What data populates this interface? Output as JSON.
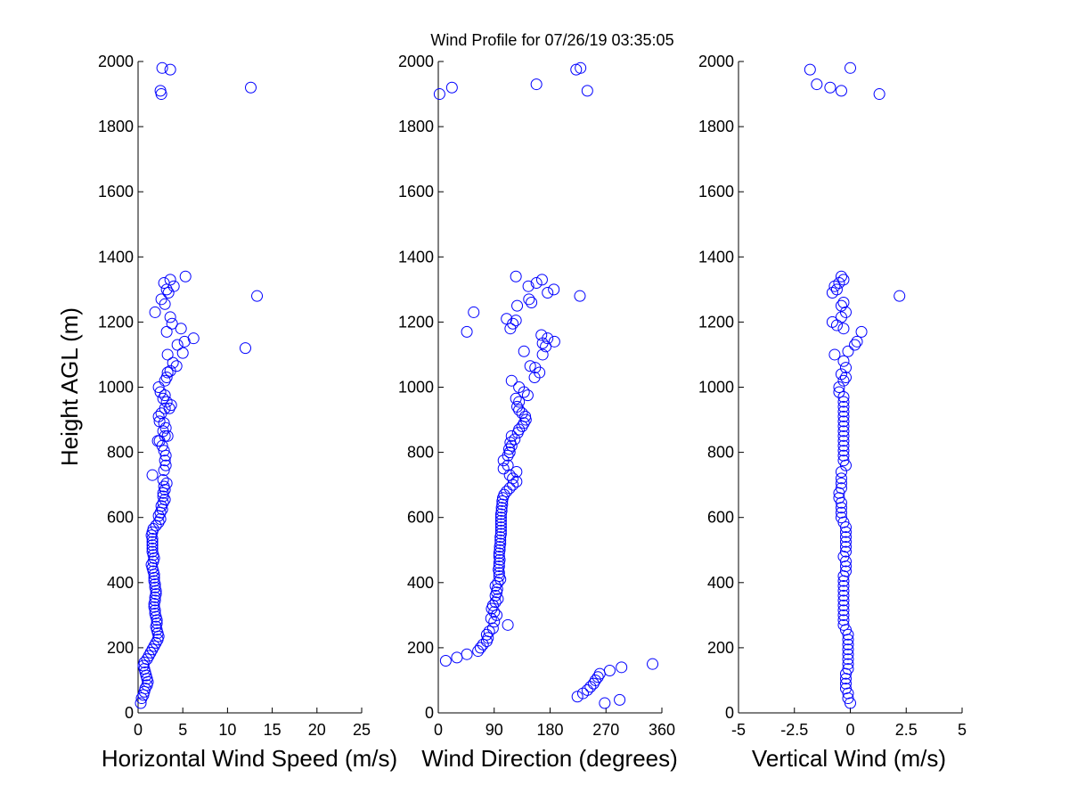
{
  "figure": {
    "title": "Wind Profile for  07/26/19 03:35:05",
    "ylabel": "Height AGL (m)",
    "marker_color": "#0000ff"
  },
  "chart_data": [
    {
      "type": "scatter",
      "id": "speed",
      "xlabel": "Horizontal Wind Speed (m/s)",
      "ylabel": "Height AGL (m)",
      "xlim": [
        0,
        25
      ],
      "ylim": [
        0,
        2000
      ],
      "xticks": [
        0,
        5,
        10,
        15,
        20,
        25
      ],
      "xtick_labels": [
        "0",
        "5",
        "10",
        "15",
        "20",
        "25"
      ],
      "yticks": [
        0,
        200,
        400,
        600,
        800,
        1000,
        1200,
        1400,
        1600,
        1800,
        2000
      ],
      "grid": false,
      "points": [
        [
          0.3,
          30
        ],
        [
          0.4,
          45
        ],
        [
          0.6,
          55
        ],
        [
          0.7,
          65
        ],
        [
          0.8,
          75
        ],
        [
          1.0,
          85
        ],
        [
          1.1,
          95
        ],
        [
          1.0,
          105
        ],
        [
          0.9,
          115
        ],
        [
          0.8,
          125
        ],
        [
          0.7,
          135
        ],
        [
          0.6,
          145
        ],
        [
          0.7,
          155
        ],
        [
          1.0,
          165
        ],
        [
          1.2,
          175
        ],
        [
          1.4,
          185
        ],
        [
          1.6,
          195
        ],
        [
          1.8,
          205
        ],
        [
          2.0,
          215
        ],
        [
          2.2,
          225
        ],
        [
          2.3,
          235
        ],
        [
          2.2,
          245
        ],
        [
          2.1,
          255
        ],
        [
          2.0,
          265
        ],
        [
          2.1,
          275
        ],
        [
          2.1,
          285
        ],
        [
          2.0,
          295
        ],
        [
          1.9,
          305
        ],
        [
          1.9,
          315
        ],
        [
          1.8,
          325
        ],
        [
          1.8,
          335
        ],
        [
          1.9,
          345
        ],
        [
          1.9,
          355
        ],
        [
          2.0,
          365
        ],
        [
          2.0,
          375
        ],
        [
          1.9,
          385
        ],
        [
          1.9,
          395
        ],
        [
          1.8,
          405
        ],
        [
          1.8,
          415
        ],
        [
          1.8,
          425
        ],
        [
          1.7,
          435
        ],
        [
          1.6,
          445
        ],
        [
          1.5,
          455
        ],
        [
          1.7,
          465
        ],
        [
          1.8,
          475
        ],
        [
          1.7,
          485
        ],
        [
          1.6,
          495
        ],
        [
          1.6,
          505
        ],
        [
          1.6,
          515
        ],
        [
          1.6,
          525
        ],
        [
          1.6,
          535
        ],
        [
          1.5,
          545
        ],
        [
          1.6,
          555
        ],
        [
          1.7,
          565
        ],
        [
          2.0,
          575
        ],
        [
          2.3,
          585
        ],
        [
          2.5,
          595
        ],
        [
          2.3,
          605
        ],
        [
          2.5,
          615
        ],
        [
          2.7,
          625
        ],
        [
          2.6,
          635
        ],
        [
          2.8,
          645
        ],
        [
          3.0,
          655
        ],
        [
          2.8,
          665
        ],
        [
          2.8,
          675
        ],
        [
          3.0,
          685
        ],
        [
          2.9,
          695
        ],
        [
          3.2,
          705
        ],
        [
          2.8,
          715
        ],
        [
          1.6,
          730
        ],
        [
          2.9,
          745
        ],
        [
          3.1,
          760
        ],
        [
          3.0,
          775
        ],
        [
          3.1,
          790
        ],
        [
          2.9,
          805
        ],
        [
          2.7,
          820
        ],
        [
          2.4,
          835
        ],
        [
          2.2,
          835
        ],
        [
          3.0,
          850
        ],
        [
          3.3,
          850
        ],
        [
          2.8,
          865
        ],
        [
          3.1,
          875
        ],
        [
          2.9,
          890
        ],
        [
          2.4,
          895
        ],
        [
          2.3,
          910
        ],
        [
          2.6,
          920
        ],
        [
          3.0,
          935
        ],
        [
          3.5,
          935
        ],
        [
          3.7,
          945
        ],
        [
          3.2,
          955
        ],
        [
          2.8,
          965
        ],
        [
          3.0,
          975
        ],
        [
          2.5,
          985
        ],
        [
          2.3,
          1000
        ],
        [
          3.0,
          1020
        ],
        [
          3.2,
          1030
        ],
        [
          3.3,
          1045
        ],
        [
          3.6,
          1050
        ],
        [
          4.3,
          1065
        ],
        [
          3.9,
          1075
        ],
        [
          3.3,
          1100
        ],
        [
          5.0,
          1105
        ],
        [
          12.0,
          1120
        ],
        [
          4.4,
          1130
        ],
        [
          5.2,
          1140
        ],
        [
          6.2,
          1150
        ],
        [
          3.2,
          1170
        ],
        [
          4.8,
          1180
        ],
        [
          3.8,
          1195
        ],
        [
          3.6,
          1215
        ],
        [
          1.9,
          1230
        ],
        [
          3.0,
          1255
        ],
        [
          2.6,
          1270
        ],
        [
          13.3,
          1280
        ],
        [
          3.4,
          1290
        ],
        [
          3.2,
          1300
        ],
        [
          4.0,
          1310
        ],
        [
          2.9,
          1320
        ],
        [
          3.6,
          1330
        ],
        [
          5.3,
          1340
        ],
        [
          3.6,
          1975
        ],
        [
          2.7,
          1980
        ],
        [
          2.5,
          1910
        ],
        [
          2.6,
          1900
        ],
        [
          12.6,
          1920
        ]
      ]
    },
    {
      "type": "scatter",
      "id": "direction",
      "xlabel": "Wind Direction (degrees)",
      "ylabel": "",
      "xlim": [
        0,
        360
      ],
      "ylim": [
        0,
        2000
      ],
      "xticks": [
        0,
        90,
        180,
        270,
        360
      ],
      "xtick_labels": [
        "0",
        "90",
        "180",
        "270",
        "360"
      ],
      "yticks": [
        0,
        200,
        400,
        600,
        800,
        1000,
        1200,
        1400,
        1600,
        1800,
        2000
      ],
      "grid": false,
      "points": [
        [
          268,
          30
        ],
        [
          292,
          40
        ],
        [
          224,
          50
        ],
        [
          233,
          60
        ],
        [
          240,
          70
        ],
        [
          245,
          80
        ],
        [
          250,
          90
        ],
        [
          253,
          100
        ],
        [
          257,
          110
        ],
        [
          260,
          120
        ],
        [
          276,
          130
        ],
        [
          295,
          140
        ],
        [
          345,
          150
        ],
        [
          12,
          160
        ],
        [
          30,
          170
        ],
        [
          46,
          180
        ],
        [
          64,
          190
        ],
        [
          68,
          200
        ],
        [
          72,
          210
        ],
        [
          78,
          220
        ],
        [
          80,
          230
        ],
        [
          78,
          240
        ],
        [
          82,
          250
        ],
        [
          88,
          260
        ],
        [
          112,
          270
        ],
        [
          90,
          280
        ],
        [
          85,
          290
        ],
        [
          94,
          300
        ],
        [
          90,
          310
        ],
        [
          86,
          320
        ],
        [
          88,
          330
        ],
        [
          92,
          340
        ],
        [
          96,
          350
        ],
        [
          92,
          360
        ],
        [
          94,
          370
        ],
        [
          95,
          380
        ],
        [
          92,
          390
        ],
        [
          96,
          400
        ],
        [
          100,
          410
        ],
        [
          98,
          420
        ],
        [
          98,
          430
        ],
        [
          97,
          440
        ],
        [
          98,
          450
        ],
        [
          98,
          460
        ],
        [
          99,
          470
        ],
        [
          98,
          480
        ],
        [
          98,
          490
        ],
        [
          99,
          500
        ],
        [
          99,
          510
        ],
        [
          100,
          520
        ],
        [
          100,
          530
        ],
        [
          100,
          540
        ],
        [
          101,
          550
        ],
        [
          101,
          560
        ],
        [
          101,
          570
        ],
        [
          101,
          580
        ],
        [
          101,
          590
        ],
        [
          101,
          600
        ],
        [
          101,
          610
        ],
        [
          102,
          620
        ],
        [
          102,
          630
        ],
        [
          103,
          640
        ],
        [
          103,
          650
        ],
        [
          104,
          660
        ],
        [
          106,
          670
        ],
        [
          110,
          680
        ],
        [
          115,
          690
        ],
        [
          120,
          700
        ],
        [
          126,
          710
        ],
        [
          120,
          720
        ],
        [
          115,
          730
        ],
        [
          126,
          740
        ],
        [
          105,
          750
        ],
        [
          112,
          760
        ],
        [
          105,
          775
        ],
        [
          112,
          790
        ],
        [
          115,
          800
        ],
        [
          114,
          810
        ],
        [
          118,
          820
        ],
        [
          116,
          830
        ],
        [
          123,
          840
        ],
        [
          118,
          850
        ],
        [
          128,
          860
        ],
        [
          130,
          870
        ],
        [
          135,
          880
        ],
        [
          138,
          890
        ],
        [
          141,
          900
        ],
        [
          140,
          910
        ],
        [
          135,
          920
        ],
        [
          130,
          930
        ],
        [
          127,
          940
        ],
        [
          130,
          955
        ],
        [
          125,
          965
        ],
        [
          144,
          975
        ],
        [
          138,
          985
        ],
        [
          130,
          1000
        ],
        [
          118,
          1020
        ],
        [
          155,
          1030
        ],
        [
          163,
          1045
        ],
        [
          156,
          1060
        ],
        [
          148,
          1065
        ],
        [
          168,
          1100
        ],
        [
          138,
          1110
        ],
        [
          173,
          1125
        ],
        [
          168,
          1135
        ],
        [
          187,
          1140
        ],
        [
          176,
          1150
        ],
        [
          166,
          1160
        ],
        [
          46,
          1170
        ],
        [
          116,
          1180
        ],
        [
          120,
          1195
        ],
        [
          125,
          1205
        ],
        [
          110,
          1210
        ],
        [
          57,
          1230
        ],
        [
          127,
          1250
        ],
        [
          150,
          1260
        ],
        [
          146,
          1270
        ],
        [
          228,
          1280
        ],
        [
          176,
          1290
        ],
        [
          186,
          1300
        ],
        [
          145,
          1310
        ],
        [
          158,
          1320
        ],
        [
          167,
          1330
        ],
        [
          125,
          1340
        ],
        [
          2,
          1900
        ],
        [
          22,
          1920
        ],
        [
          158,
          1930
        ],
        [
          240,
          1910
        ],
        [
          222,
          1975
        ],
        [
          229,
          1980
        ]
      ]
    },
    {
      "type": "scatter",
      "id": "vertical",
      "xlabel": "Vertical Wind (m/s)",
      "ylabel": "",
      "xlim": [
        -5,
        5
      ],
      "ylim": [
        0,
        2000
      ],
      "xticks": [
        -5,
        -2.5,
        0,
        2.5,
        5
      ],
      "xtick_labels": [
        "-5",
        "-2.5",
        "0",
        "2.5",
        "5"
      ],
      "yticks": [
        0,
        200,
        400,
        600,
        800,
        1000,
        1200,
        1400,
        1600,
        1800,
        2000
      ],
      "grid": false,
      "points": [
        [
          0.0,
          30
        ],
        [
          -0.1,
          45
        ],
        [
          -0.1,
          60
        ],
        [
          -0.2,
          75
        ],
        [
          -0.2,
          90
        ],
        [
          -0.2,
          105
        ],
        [
          -0.2,
          120
        ],
        [
          -0.1,
          135
        ],
        [
          -0.1,
          150
        ],
        [
          -0.1,
          165
        ],
        [
          -0.1,
          180
        ],
        [
          -0.1,
          195
        ],
        [
          -0.1,
          210
        ],
        [
          -0.1,
          225
        ],
        [
          -0.1,
          240
        ],
        [
          -0.2,
          255
        ],
        [
          -0.3,
          270
        ],
        [
          -0.3,
          285
        ],
        [
          -0.3,
          300
        ],
        [
          -0.3,
          315
        ],
        [
          -0.3,
          330
        ],
        [
          -0.3,
          345
        ],
        [
          -0.3,
          360
        ],
        [
          -0.3,
          375
        ],
        [
          -0.3,
          390
        ],
        [
          -0.3,
          405
        ],
        [
          -0.3,
          420
        ],
        [
          -0.2,
          435
        ],
        [
          -0.2,
          450
        ],
        [
          -0.2,
          465
        ],
        [
          -0.3,
          480
        ],
        [
          -0.2,
          495
        ],
        [
          -0.2,
          510
        ],
        [
          -0.2,
          525
        ],
        [
          -0.2,
          540
        ],
        [
          -0.2,
          555
        ],
        [
          -0.2,
          570
        ],
        [
          -0.3,
          585
        ],
        [
          -0.4,
          600
        ],
        [
          -0.4,
          615
        ],
        [
          -0.4,
          630
        ],
        [
          -0.4,
          645
        ],
        [
          -0.5,
          660
        ],
        [
          -0.5,
          675
        ],
        [
          -0.4,
          690
        ],
        [
          -0.4,
          705
        ],
        [
          -0.4,
          720
        ],
        [
          -0.4,
          740
        ],
        [
          -0.2,
          760
        ],
        [
          -0.3,
          775
        ],
        [
          -0.3,
          790
        ],
        [
          -0.3,
          805
        ],
        [
          -0.3,
          820
        ],
        [
          -0.3,
          835
        ],
        [
          -0.3,
          850
        ],
        [
          -0.3,
          865
        ],
        [
          -0.3,
          880
        ],
        [
          -0.3,
          895
        ],
        [
          -0.3,
          910
        ],
        [
          -0.3,
          925
        ],
        [
          -0.3,
          940
        ],
        [
          -0.3,
          955
        ],
        [
          -0.3,
          970
        ],
        [
          -0.5,
          985
        ],
        [
          -0.5,
          1000
        ],
        [
          -0.3,
          1020
        ],
        [
          -0.2,
          1030
        ],
        [
          -0.4,
          1040
        ],
        [
          -0.2,
          1060
        ],
        [
          -0.3,
          1080
        ],
        [
          -0.7,
          1100
        ],
        [
          -0.1,
          1110
        ],
        [
          0.2,
          1130
        ],
        [
          0.3,
          1140
        ],
        [
          0.5,
          1170
        ],
        [
          -0.3,
          1180
        ],
        [
          -0.6,
          1190
        ],
        [
          -0.8,
          1200
        ],
        [
          -0.4,
          1215
        ],
        [
          -0.2,
          1230
        ],
        [
          -0.4,
          1250
        ],
        [
          -0.3,
          1260
        ],
        [
          -0.8,
          1290
        ],
        [
          -0.6,
          1300
        ],
        [
          -0.7,
          1310
        ],
        [
          -0.5,
          1320
        ],
        [
          -0.3,
          1330
        ],
        [
          -0.4,
          1340
        ],
        [
          2.2,
          1280
        ],
        [
          -1.8,
          1975
        ],
        [
          -1.5,
          1930
        ],
        [
          -0.9,
          1920
        ],
        [
          -0.4,
          1910
        ],
        [
          0.0,
          1980
        ],
        [
          1.3,
          1900
        ]
      ]
    }
  ]
}
